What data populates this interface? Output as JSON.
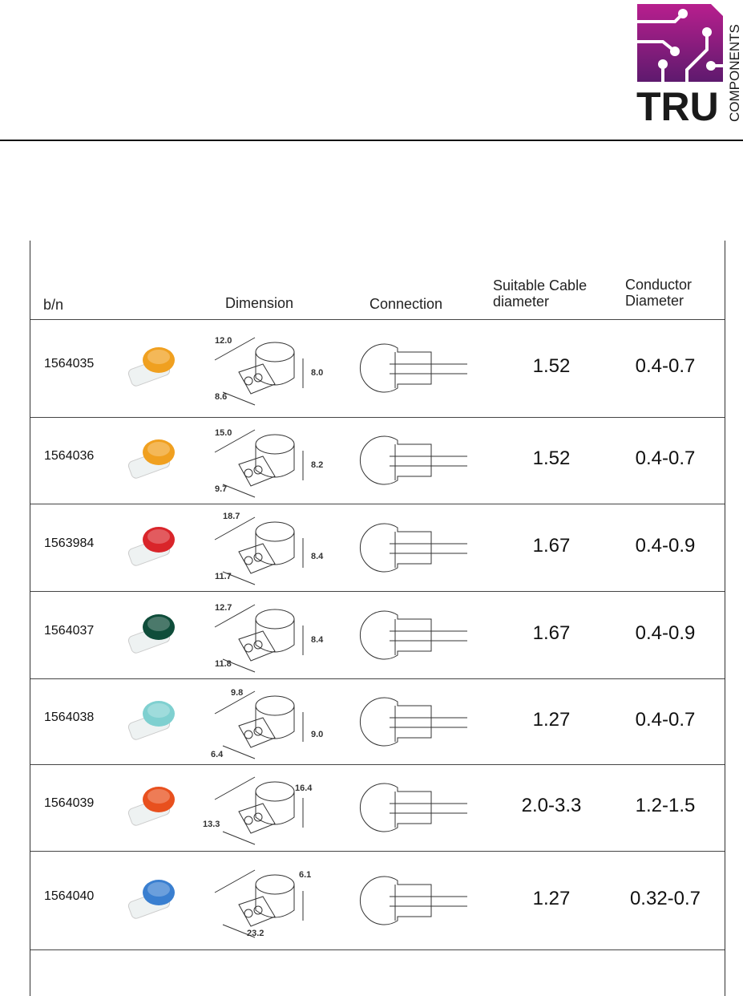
{
  "logo": {
    "text": "TRU",
    "subtext": "COMPONENTS",
    "color": "#8e1f82"
  },
  "table": {
    "headers": {
      "bn": "b/n",
      "dimension": "Dimension",
      "connection": "Connection",
      "cable_line1": "Suitable Cable",
      "cable_line2": "diameter",
      "conductor_line1": "Conductor",
      "conductor_line2": "Diameter"
    },
    "rows": [
      {
        "bn": "1564035",
        "cable": "1.52",
        "conductor": "0.4-0.7",
        "color": "#f0a020",
        "dims": [
          "12.0",
          "8.0",
          "8.6"
        ]
      },
      {
        "bn": "1564036",
        "cable": "1.52",
        "conductor": "0.4-0.7",
        "color": "#f0a020",
        "dims": [
          "15.0",
          "8.2",
          "9.7"
        ]
      },
      {
        "bn": "1563984",
        "cable": "1.67",
        "conductor": "0.4-0.9",
        "color": "#d9252a",
        "dims": [
          "18.7",
          "8.4",
          "11.7"
        ]
      },
      {
        "bn": "1564037",
        "cable": "1.67",
        "conductor": "0.4-0.9",
        "color": "#0f4d3a",
        "dims": [
          "12.7",
          "8.4",
          "11.8"
        ]
      },
      {
        "bn": "1564038",
        "cable": "1.27",
        "conductor": "0.4-0.7",
        "color": "#7fd0d0",
        "dims": [
          "9.8",
          "9.0",
          "6.4"
        ]
      },
      {
        "bn": "1564039",
        "cable": "2.0-3.3",
        "conductor": "1.2-1.5",
        "color": "#e8501e",
        "dims": [
          "16.4",
          "13.3"
        ]
      },
      {
        "bn": "1564040",
        "cable": "1.27",
        "conductor": "0.32-0.7",
        "color": "#3a7fd0",
        "dims": [
          "6.1",
          "23.2"
        ]
      }
    ]
  }
}
